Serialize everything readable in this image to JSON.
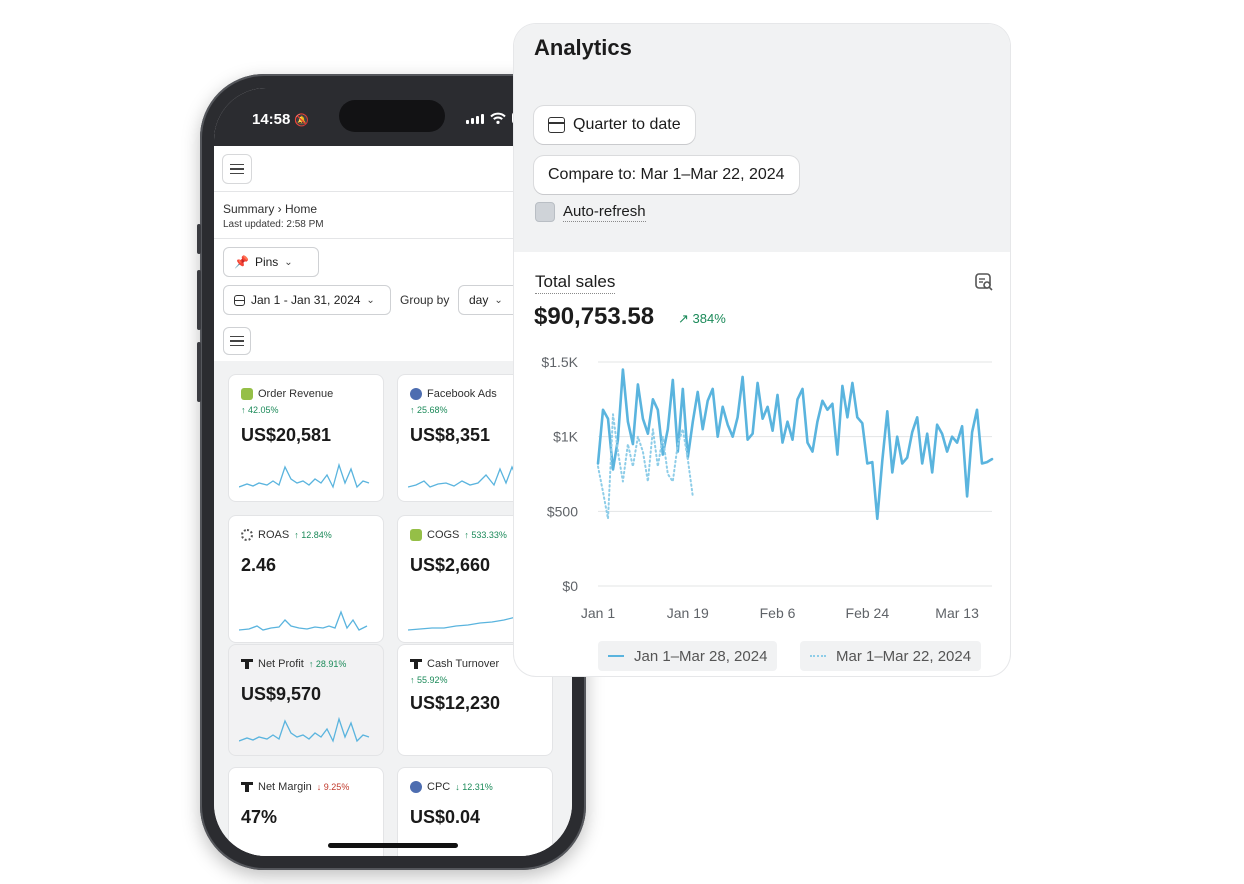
{
  "phone": {
    "status_time": "14:58",
    "breadcrumb": "Summary › Home",
    "last_updated": "Last updated: 2:58 PM",
    "pins_label": "Pins",
    "date_range": "Jan 1 - Jan 31, 2024",
    "group_by_label": "Group by",
    "group_by_value": "day",
    "cards": [
      {
        "icon": "shopify-icon",
        "label": "Order Revenue",
        "pct": "↑ 42.05%",
        "direction": "up",
        "value": "US$20,581"
      },
      {
        "icon": "facebook-icon",
        "label": "Facebook Ads",
        "pct": "↑ 25.68%",
        "direction": "up",
        "value": "US$8,351"
      },
      {
        "icon": "roas-ring-icon",
        "label": "ROAS",
        "pct": "↑ 12.84%",
        "direction": "up",
        "value": "2.46"
      },
      {
        "icon": "shopify-icon",
        "label": "COGS",
        "pct": "↑ 533.33%",
        "direction": "up",
        "value": "US$2,660"
      },
      {
        "icon": "triple-whale-icon",
        "label": "Net Profit",
        "pct": "↑ 28.91%",
        "direction": "up",
        "value": "US$9,570"
      },
      {
        "icon": "triple-whale-icon",
        "label": "Cash Turnover",
        "pct": "↑ 55.92%",
        "direction": "up",
        "value": "US$12,230"
      },
      {
        "icon": "triple-whale-icon",
        "label": "Net Margin",
        "pct": "↓ 9.25%",
        "direction": "down",
        "value": "47%"
      },
      {
        "icon": "facebook-icon",
        "label": "CPC",
        "pct": "↓ 12.31%",
        "direction": "down",
        "value": "US$0.04"
      }
    ]
  },
  "analytics": {
    "title": "Analytics",
    "date_button": "Quarter to date",
    "compare_button": "Compare to: Mar 1–Mar 22, 2024",
    "auto_refresh_label": "Auto-refresh",
    "chart_title": "Total sales",
    "total": "$90,753.58",
    "change": "↗ 384%",
    "legend": [
      "Jan 1–Mar 28, 2024",
      "Mar 1–Mar 22, 2024"
    ]
  },
  "chart_data": {
    "type": "line",
    "title": "Total sales",
    "xlabel": "",
    "ylabel": "",
    "x_ticks": [
      "Jan 1",
      "Jan 19",
      "Feb 6",
      "Feb 24",
      "Mar 13"
    ],
    "y_ticks": [
      "$0",
      "$500",
      "$1K",
      "$1.5K"
    ],
    "ylim": [
      0,
      1500
    ],
    "grid": true,
    "legend_position": "bottom",
    "series": [
      {
        "name": "Jan 1–Mar 28, 2024",
        "style": "solid",
        "color": "#5ab4de",
        "values": [
          820,
          1180,
          1120,
          780,
          980,
          1450,
          1100,
          950,
          1350,
          1120,
          1020,
          1250,
          1180,
          880,
          1050,
          1380,
          900,
          1320,
          860,
          1100,
          1300,
          1050,
          1240,
          1320,
          1000,
          1200,
          1080,
          1000,
          1130,
          1400,
          980,
          1020,
          1360,
          1120,
          1200,
          1040,
          1280,
          960,
          1100,
          980,
          1250,
          1320,
          960,
          900,
          1100,
          1240,
          1180,
          1220,
          880,
          1340,
          1130,
          1360,
          1130,
          1090,
          820,
          830,
          450,
          840,
          1170,
          760,
          1000,
          820,
          860,
          1030,
          1130,
          820,
          1020,
          760,
          1080,
          1020,
          900,
          1000,
          960,
          1070,
          600,
          1030,
          1180,
          820,
          830,
          850
        ]
      },
      {
        "name": "Mar 1–Mar 22, 2024",
        "style": "dotted",
        "color": "#8ecde8",
        "values": [
          800,
          630,
          450,
          1150,
          900,
          700,
          950,
          800,
          1000,
          900,
          700,
          1050,
          800,
          1000,
          750,
          700,
          950,
          1050,
          850,
          600
        ]
      }
    ]
  },
  "colors": {
    "accent_line": "#5ab4de",
    "compare_line": "#8ecde8",
    "positive": "#1b8a59",
    "negative": "#c0392b"
  }
}
